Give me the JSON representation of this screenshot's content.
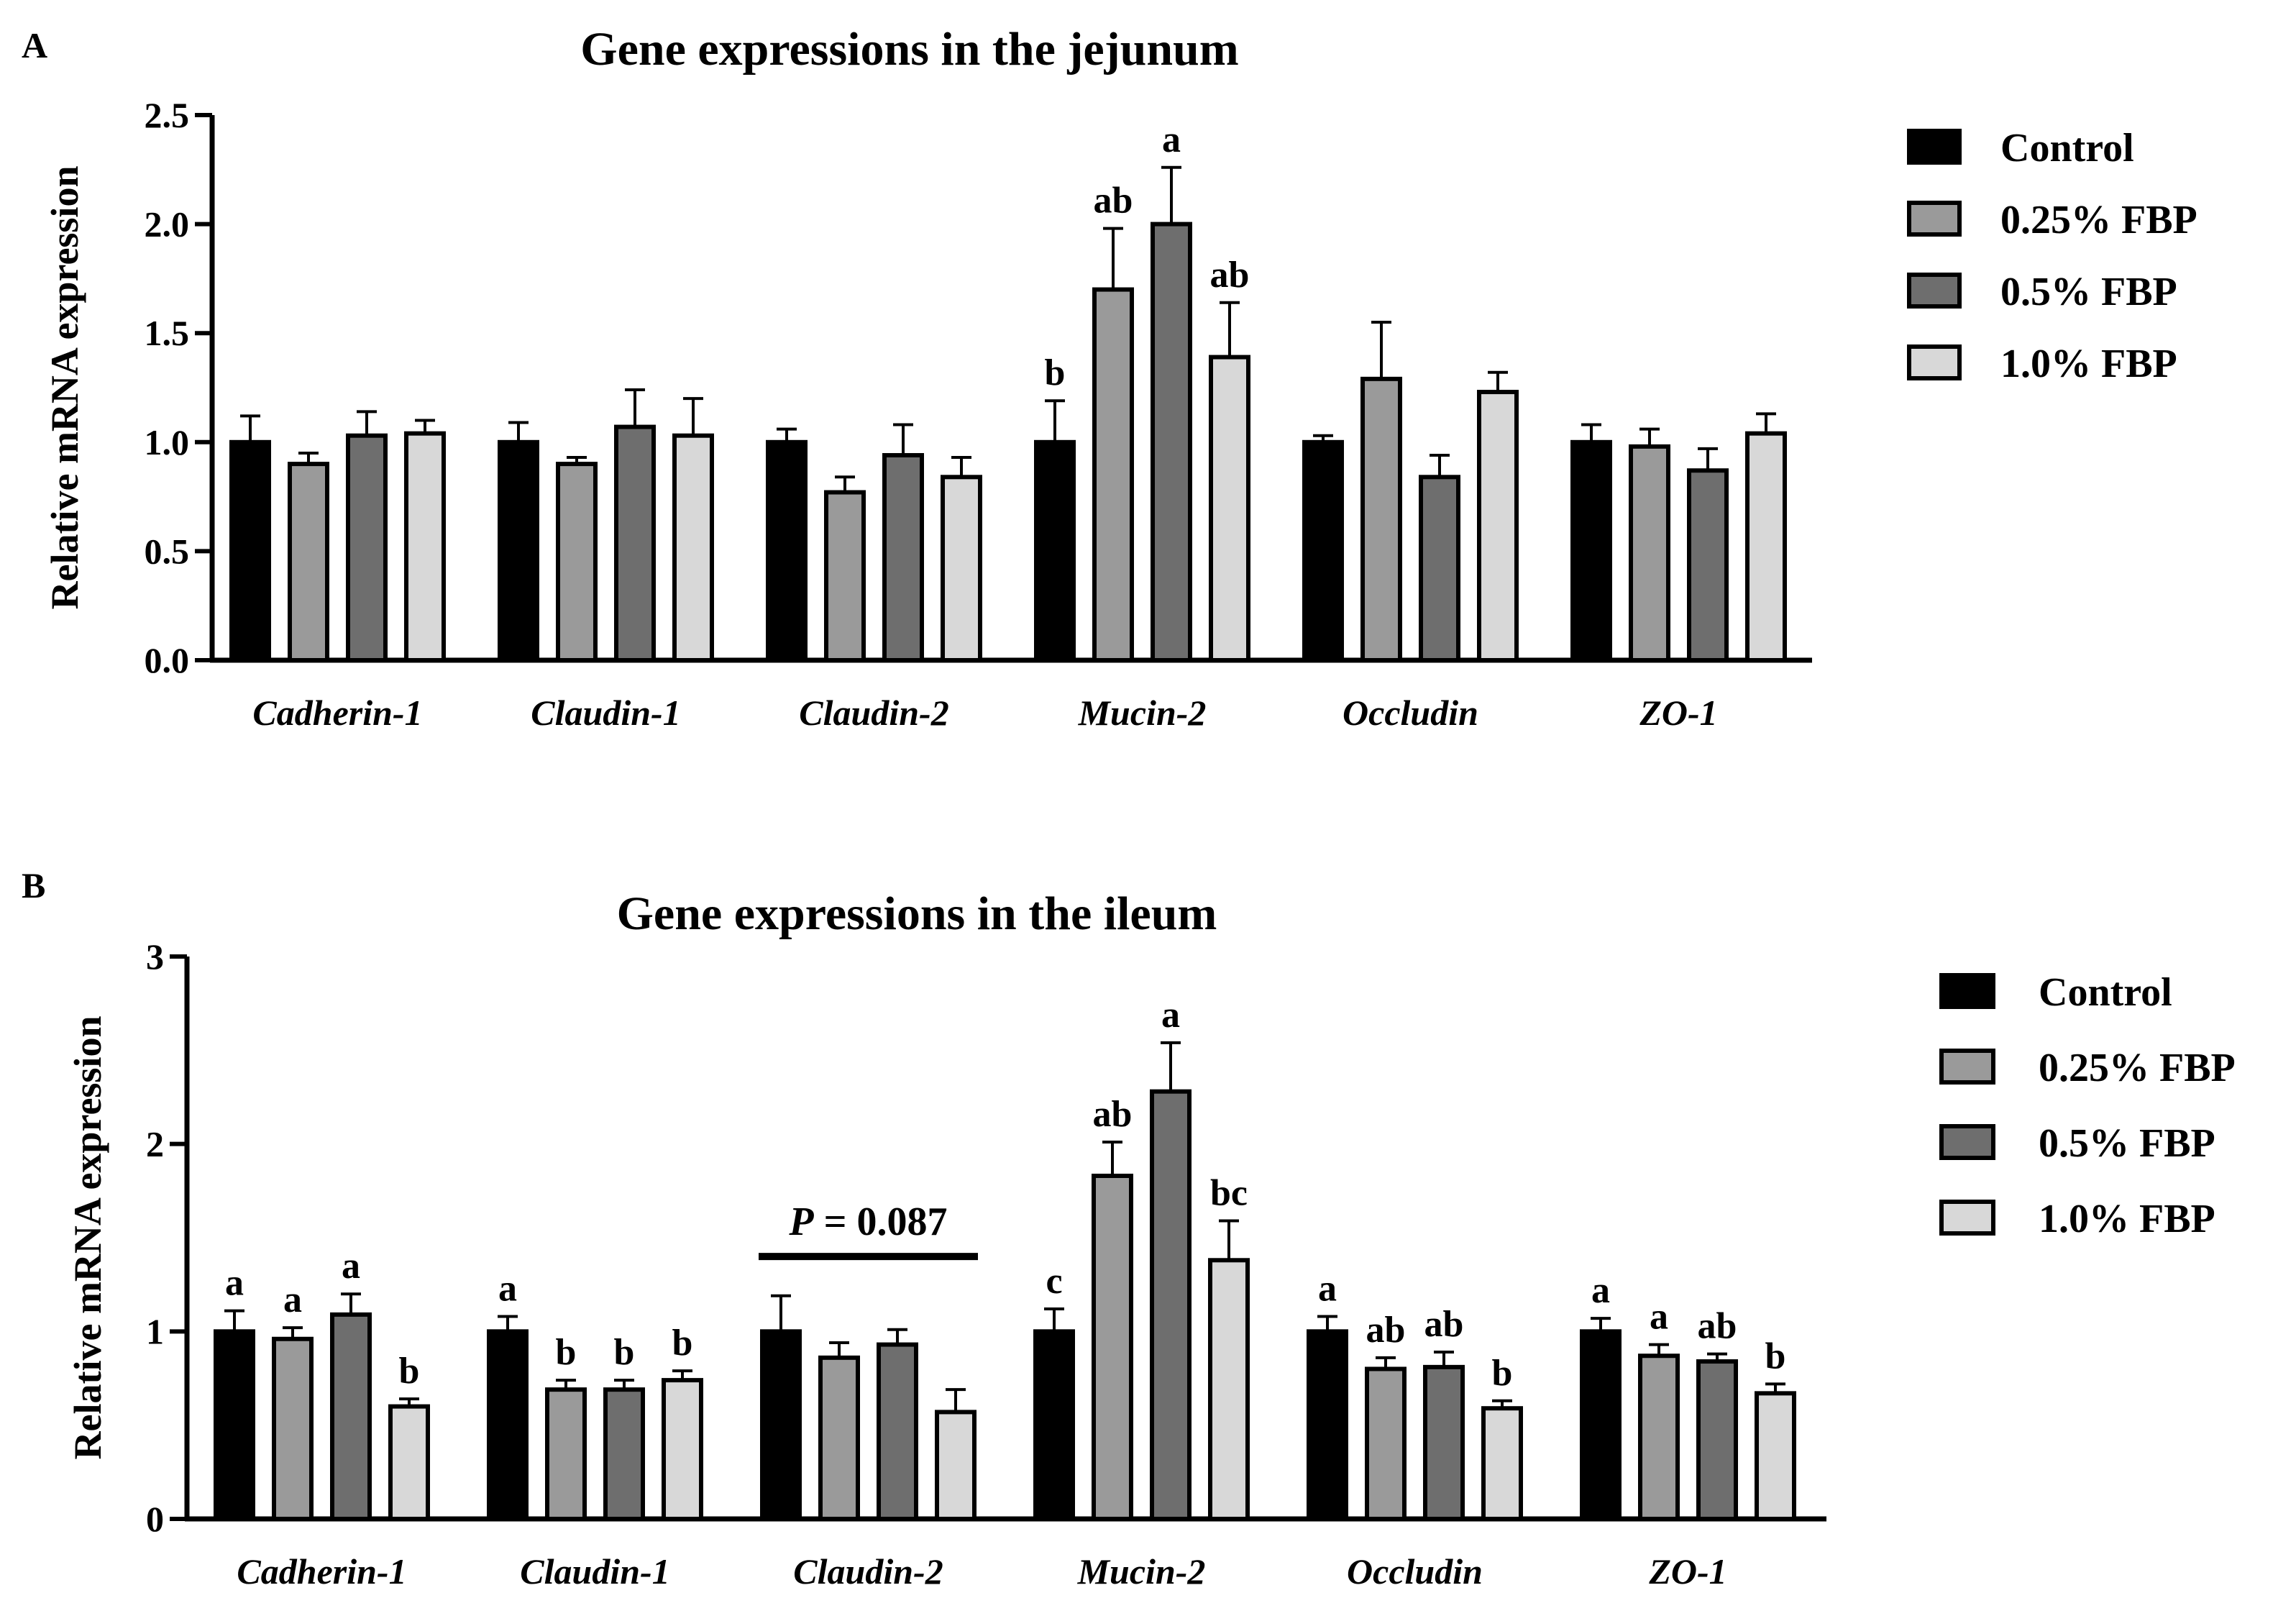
{
  "chart_data": [
    {
      "type": "bar",
      "panel": "A",
      "title": "Gene expressions in the jejunum",
      "xlabel": "",
      "ylabel": "Relative mRNA expression",
      "ylim": [
        0,
        2.5
      ],
      "yticks": [
        0,
        0.5,
        1.0,
        1.5,
        2.0,
        2.5
      ],
      "ytick_labels": [
        "0.0",
        "0.5",
        "1.0",
        "1.5",
        "2.0",
        "2.5"
      ],
      "legend_position": "top-right",
      "categories": [
        "Cadherin-1",
        "Claudin-1",
        "Claudin-2",
        "Mucin-2",
        "Occludin",
        "ZO-1"
      ],
      "series": [
        {
          "name": "Control",
          "color": "#000000",
          "values": [
            1.0,
            1.0,
            1.0,
            1.0,
            1.0,
            1.0
          ],
          "errors": [
            0.12,
            0.09,
            0.06,
            0.19,
            0.03,
            0.08
          ],
          "labels": [
            "",
            "",
            "",
            "b",
            "",
            ""
          ]
        },
        {
          "name": "0.25% FBP",
          "color": "#9a9a9a",
          "values": [
            0.9,
            0.9,
            0.77,
            1.7,
            1.29,
            0.98
          ],
          "errors": [
            0.05,
            0.03,
            0.07,
            0.28,
            0.26,
            0.08
          ],
          "labels": [
            "",
            "",
            "",
            "ab",
            "",
            ""
          ]
        },
        {
          "name": "0.5% FBP",
          "color": "#6e6e6e",
          "values": [
            1.03,
            1.07,
            0.94,
            2.0,
            0.84,
            0.87
          ],
          "errors": [
            0.11,
            0.17,
            0.14,
            0.26,
            0.1,
            0.1
          ],
          "labels": [
            "",
            "",
            "",
            "a",
            "",
            ""
          ]
        },
        {
          "name": "1.0% FBP",
          "color": "#d8d8d8",
          "values": [
            1.04,
            1.03,
            0.84,
            1.39,
            1.23,
            1.04
          ],
          "errors": [
            0.06,
            0.17,
            0.09,
            0.25,
            0.09,
            0.09
          ],
          "labels": [
            "",
            "",
            "",
            "ab",
            "",
            ""
          ]
        }
      ],
      "annotations": []
    },
    {
      "type": "bar",
      "panel": "B",
      "title": "Gene expressions in the ileum",
      "xlabel": "",
      "ylabel": "Relative mRNA expression",
      "ylim": [
        0,
        3
      ],
      "yticks": [
        0,
        1,
        2,
        3
      ],
      "ytick_labels": [
        "0",
        "1",
        "2",
        "3"
      ],
      "legend_position": "top-right",
      "categories": [
        "Cadherin-1",
        "Claudin-1",
        "Claudin-2",
        "Mucin-2",
        "Occludin",
        "ZO-1"
      ],
      "series": [
        {
          "name": "Control",
          "color": "#000000",
          "values": [
            1.0,
            1.0,
            1.0,
            1.0,
            1.0,
            1.0
          ],
          "errors": [
            0.11,
            0.08,
            0.19,
            0.12,
            0.08,
            0.07
          ],
          "labels": [
            "a",
            "a",
            "",
            "c",
            "a",
            "a"
          ]
        },
        {
          "name": "0.25% FBP",
          "color": "#9a9a9a",
          "values": [
            0.96,
            0.69,
            0.86,
            1.83,
            0.8,
            0.87
          ],
          "errors": [
            0.06,
            0.05,
            0.08,
            0.18,
            0.06,
            0.06
          ],
          "labels": [
            "a",
            "b",
            "",
            "ab",
            "ab",
            "a"
          ]
        },
        {
          "name": "0.5% FBP",
          "color": "#6e6e6e",
          "values": [
            1.09,
            0.69,
            0.93,
            2.28,
            0.81,
            0.84
          ],
          "errors": [
            0.11,
            0.05,
            0.08,
            0.26,
            0.08,
            0.04
          ],
          "labels": [
            "a",
            "b",
            "",
            "a",
            "ab",
            "ab"
          ]
        },
        {
          "name": "1.0% FBP",
          "color": "#d8d8d8",
          "values": [
            0.6,
            0.74,
            0.57,
            1.38,
            0.59,
            0.67
          ],
          "errors": [
            0.04,
            0.05,
            0.12,
            0.21,
            0.04,
            0.05
          ],
          "labels": [
            "b",
            "b",
            "",
            "bc",
            "b",
            "b"
          ]
        }
      ],
      "annotations": [
        {
          "category": "Claudin-2",
          "italic_prefix": "P",
          "text": " = 0.087",
          "y": 1.4
        }
      ]
    }
  ]
}
